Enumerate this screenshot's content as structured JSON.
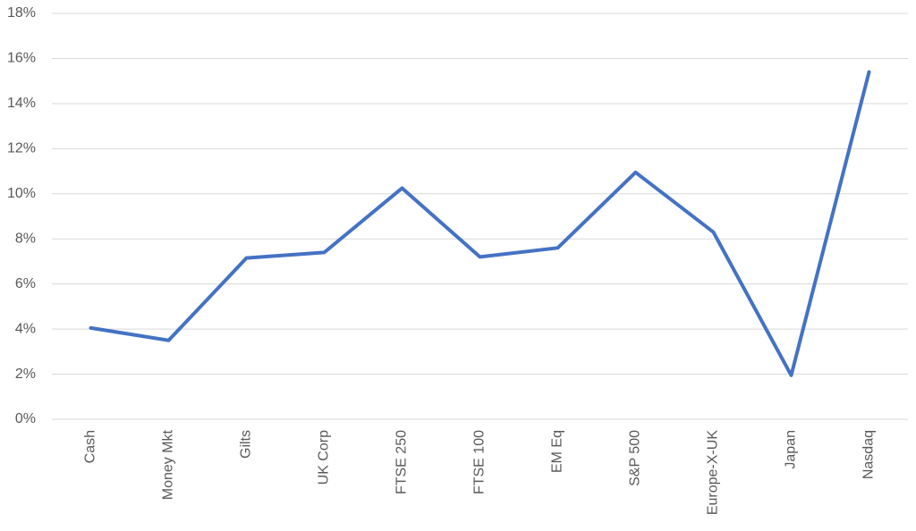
{
  "chart_data": {
    "type": "line",
    "categories": [
      "Cash",
      "Money Mkt",
      "Gilts",
      "UK Corp",
      "FTSE 250",
      "FTSE 100",
      "EM Eq",
      "S&P 500",
      "Europe-X-UK",
      "Japan",
      "Nasdaq"
    ],
    "values": [
      4.05,
      3.5,
      7.15,
      7.4,
      10.25,
      7.2,
      7.6,
      10.95,
      8.3,
      1.95,
      15.4
    ],
    "color": "#4472c4",
    "ylim": [
      0,
      18
    ],
    "yticks": [
      {
        "value": 0,
        "label": "0%"
      },
      {
        "value": 2,
        "label": "2%"
      },
      {
        "value": 4,
        "label": "4%"
      },
      {
        "value": 6,
        "label": "6%"
      },
      {
        "value": 8,
        "label": "8%"
      },
      {
        "value": 10,
        "label": "10%"
      },
      {
        "value": 12,
        "label": "12%"
      },
      {
        "value": 14,
        "label": "14%"
      },
      {
        "value": 16,
        "label": "16%"
      },
      {
        "value": 18,
        "label": "18%"
      }
    ],
    "grid": true
  }
}
